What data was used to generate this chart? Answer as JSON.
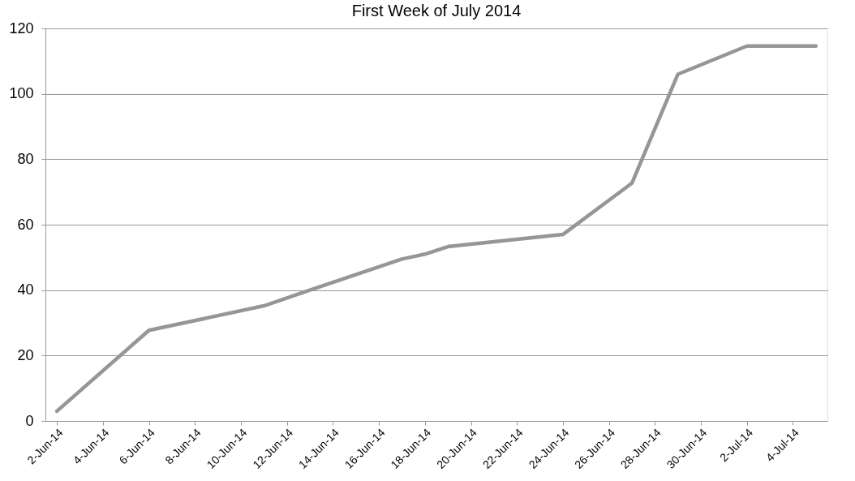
{
  "chart_data": {
    "type": "line",
    "title": "First Week of July 2014",
    "x": [
      "2014-06-02",
      "2014-06-06",
      "2014-06-11",
      "2014-06-13",
      "2014-06-17",
      "2014-06-18",
      "2014-06-19",
      "2014-06-24",
      "2014-06-27",
      "2014-06-29",
      "2014-07-02",
      "2014-07-05"
    ],
    "series": [
      {
        "color": "#969696",
        "values": [
          3,
          27.7,
          35.2,
          40,
          49.5,
          51,
          53.3,
          57,
          72.7,
          106,
          114.6,
          114.6
        ]
      }
    ],
    "xlim": [
      "2014-06-01T12:00",
      "2014-07-05T12:00"
    ],
    "xticks": [
      {
        "value": "2014-06-02",
        "label": "2-Jun-14"
      },
      {
        "value": "2014-06-04",
        "label": "4-Jun-14"
      },
      {
        "value": "2014-06-06",
        "label": "6-Jun-14"
      },
      {
        "value": "2014-06-08",
        "label": "8-Jun-14"
      },
      {
        "value": "2014-06-10",
        "label": "10-Jun-14"
      },
      {
        "value": "2014-06-12",
        "label": "12-Jun-14"
      },
      {
        "value": "2014-06-14",
        "label": "14-Jun-14"
      },
      {
        "value": "2014-06-16",
        "label": "16-Jun-14"
      },
      {
        "value": "2014-06-18",
        "label": "18-Jun-14"
      },
      {
        "value": "2014-06-20",
        "label": "20-Jun-14"
      },
      {
        "value": "2014-06-22",
        "label": "22-Jun-14"
      },
      {
        "value": "2014-06-24",
        "label": "24-Jun-14"
      },
      {
        "value": "2014-06-26",
        "label": "26-Jun-14"
      },
      {
        "value": "2014-06-28",
        "label": "28-Jun-14"
      },
      {
        "value": "2014-06-30",
        "label": "30-Jun-14"
      },
      {
        "value": "2014-07-02",
        "label": "2-Jul-14"
      },
      {
        "value": "2014-07-04",
        "label": "4-Jul-14"
      }
    ],
    "ylim": [
      0,
      120
    ],
    "yticks": [
      0,
      20,
      40,
      60,
      80,
      100,
      120
    ],
    "grid": "y",
    "marker": "none",
    "line_style": "solid"
  }
}
